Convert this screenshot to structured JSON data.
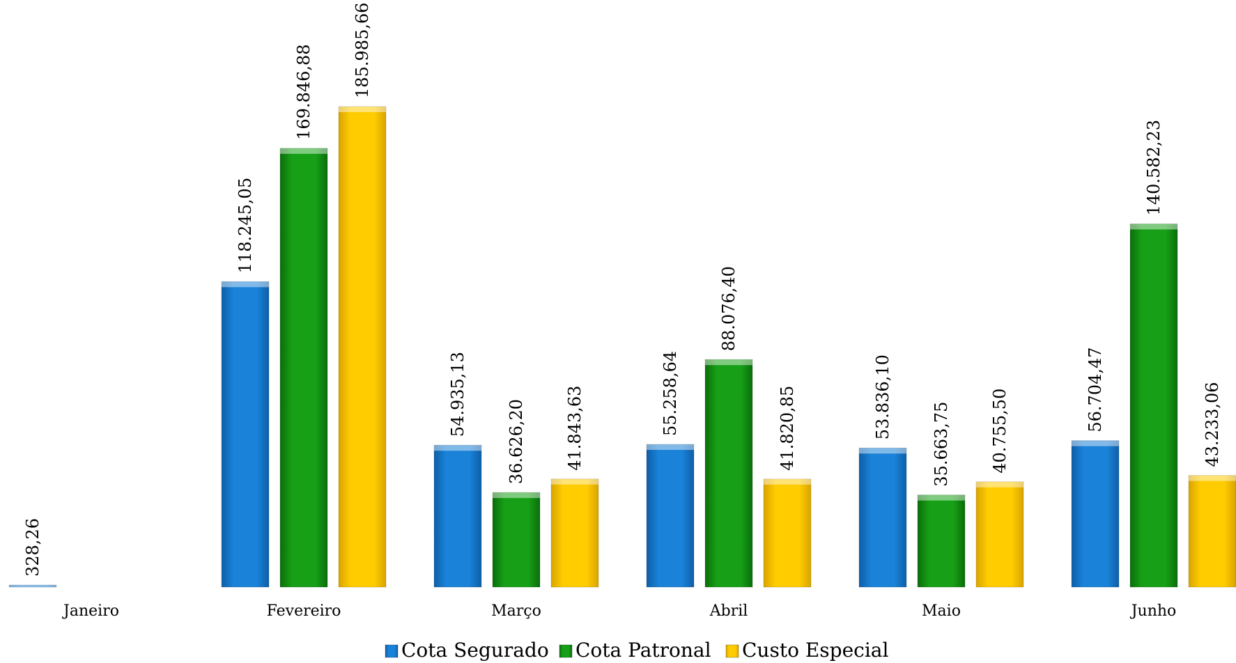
{
  "colors": {
    "cota_segurado": "#1a7fd6",
    "cota_patronal": "#17a017",
    "custo_especial": "#ffcc00",
    "axis": "#cfcfcf"
  },
  "chart_data": {
    "type": "bar",
    "title": "",
    "xlabel": "",
    "ylabel": "",
    "ylim": [
      0,
      200000
    ],
    "grid": false,
    "legend_placement": "bottom",
    "categories": [
      "Janeiro",
      "Fevereiro",
      "Março",
      "Abril",
      "Maio",
      "Junho"
    ],
    "series": [
      {
        "name": "Cota Segurado",
        "values": [
          328.26,
          118245.05,
          54935.13,
          55258.64,
          53836.1,
          56704.47
        ],
        "labels": [
          "328,26",
          "118.245,05",
          "54.935,13",
          "55.258,64",
          "53.836,10",
          "56.704,47"
        ]
      },
      {
        "name": "Cota Patronal",
        "values": [
          0,
          169846.88,
          36626.2,
          88076.4,
          35663.75,
          140582.23
        ],
        "labels": [
          "",
          "169.846,88",
          "36.626,20",
          "88.076,40",
          "35.663,75",
          "140.582,23"
        ]
      },
      {
        "name": "Custo Especial",
        "values": [
          0,
          185985.66,
          41843.63,
          41820.85,
          40755.5,
          43233.06
        ],
        "labels": [
          "",
          "185.985,66",
          "41.843,63",
          "41.820,85",
          "40.755,50",
          "43.233,06"
        ]
      }
    ]
  }
}
